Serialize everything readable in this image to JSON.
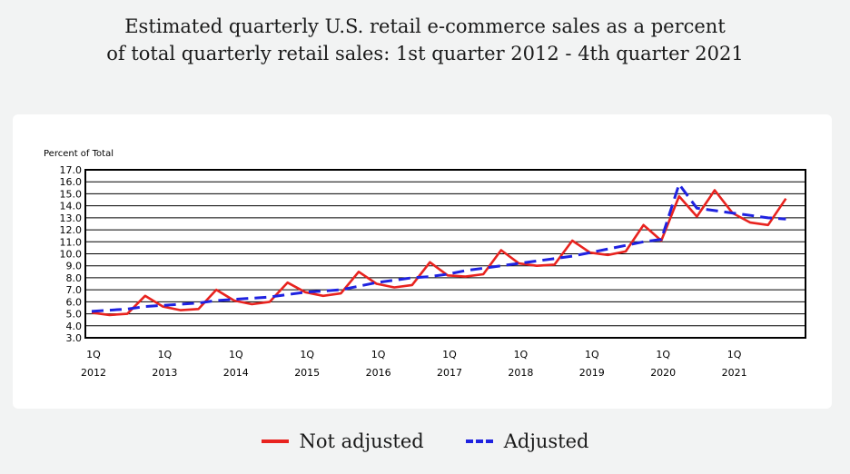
{
  "header": {
    "title_line1": "Estimated quarterly U.S. retail e-commerce sales as a percent",
    "title_line2": "of total quarterly retail sales: 1st quarter 2012 - 4th quarter 2021"
  },
  "colors": {
    "not_adjusted": "#e8231f",
    "adjusted": "#1f22e0",
    "grid": "#000000"
  },
  "chart_data": {
    "type": "line",
    "ylabel": "Percent of Total",
    "ylim": [
      3.0,
      17.0
    ],
    "yticks": [
      "17.0",
      "16.0",
      "15.0",
      "14.0",
      "13.0",
      "12.0",
      "11.0",
      "10.0",
      "9.0",
      "8.0",
      "7.0",
      "6.0",
      "5.0",
      "4.0",
      "3.0"
    ],
    "xticks": [
      {
        "q": "1Q",
        "year": "2012"
      },
      {
        "q": "1Q",
        "year": "2013"
      },
      {
        "q": "1Q",
        "year": "2014"
      },
      {
        "q": "1Q",
        "year": "2015"
      },
      {
        "q": "1Q",
        "year": "2016"
      },
      {
        "q": "1Q",
        "year": "2017"
      },
      {
        "q": "1Q",
        "year": "2018"
      },
      {
        "q": "1Q",
        "year": "2019"
      },
      {
        "q": "1Q",
        "year": "2020"
      },
      {
        "q": "1Q",
        "year": "2021"
      }
    ],
    "grid": true,
    "legend_position": "bottom",
    "series": [
      {
        "name": "Not adjusted",
        "style": "solid",
        "values": [
          5.1,
          4.9,
          5.0,
          6.5,
          5.6,
          5.3,
          5.4,
          7.0,
          6.1,
          5.8,
          6.0,
          7.6,
          6.8,
          6.5,
          6.7,
          8.5,
          7.5,
          7.2,
          7.4,
          9.3,
          8.2,
          8.1,
          8.3,
          10.3,
          9.2,
          9.0,
          9.1,
          11.1,
          10.1,
          9.9,
          10.2,
          12.4,
          11.1,
          14.8,
          13.1,
          15.3,
          13.4,
          12.6,
          12.4,
          14.6
        ]
      },
      {
        "name": "Adjusted",
        "style": "dashed",
        "values": [
          5.2,
          5.3,
          5.4,
          5.6,
          5.7,
          5.8,
          5.9,
          6.1,
          6.2,
          6.3,
          6.4,
          6.6,
          6.8,
          6.9,
          7.0,
          7.3,
          7.6,
          7.8,
          8.0,
          8.1,
          8.3,
          8.6,
          8.8,
          9.0,
          9.2,
          9.4,
          9.6,
          9.8,
          10.1,
          10.4,
          10.7,
          11.0,
          11.2,
          15.8,
          13.8,
          13.6,
          13.4,
          13.2,
          13.0,
          12.9
        ]
      }
    ]
  },
  "legend": {
    "items": [
      {
        "label": "Not adjusted"
      },
      {
        "label": "Adjusted"
      }
    ]
  }
}
